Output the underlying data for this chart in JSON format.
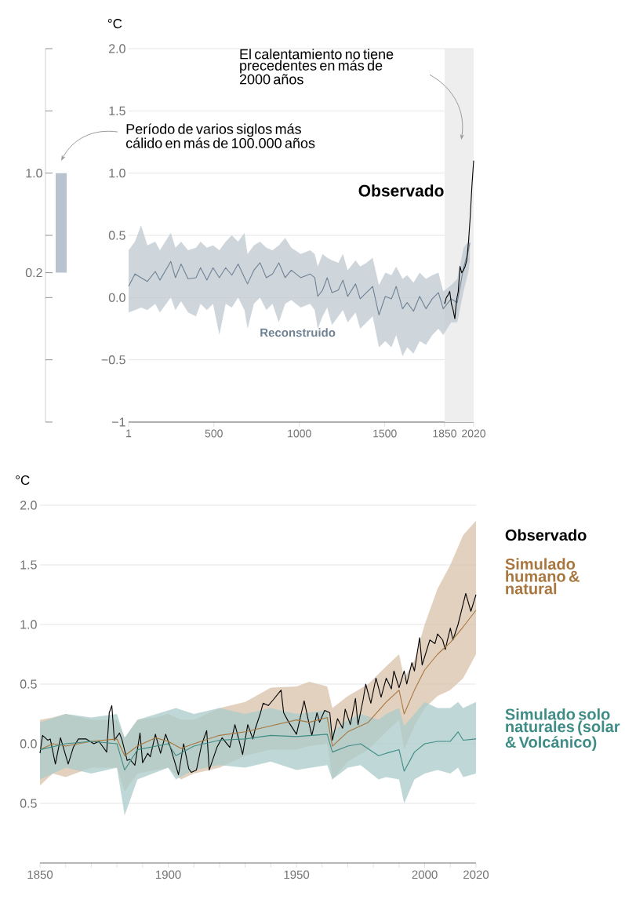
{
  "chart_data": [
    {
      "type": "bar",
      "categories": [
        null
      ],
      "base": [
        0.2
      ],
      "values": [
        0.8
      ],
      "color": "#b8c3cf",
      "ylim": [
        -1,
        2
      ],
      "tick_labels": "y",
      "yticks": [
        {
          "value": -1,
          "label": null
        },
        {
          "value": -0.5,
          "label": null
        },
        {
          "value": 0,
          "label": null
        },
        {
          "value": 0.2,
          "label": "0.2"
        },
        {
          "value": 0.5,
          "label": null
        },
        {
          "value": 1,
          "label": "1.0"
        },
        {
          "value": 1.5,
          "label": null
        },
        {
          "value": 2,
          "label": null
        }
      ],
      "annotations": [
        "Período de varios siglos más cálido en más de 100.000 años"
      ]
    },
    {
      "type": "line",
      "ylabel": "°C",
      "annotations": [
        "El calentamiento no tiene precedentes en más de 2000 años"
      ],
      "xlim": [
        1,
        2020
      ],
      "xticks": [
        1,
        500,
        1000,
        1500,
        1850,
        2020
      ],
      "ylim": [
        -1,
        2
      ],
      "yticks": [
        {
          "value": -1,
          "label": "−1"
        },
        {
          "value": -0.5,
          "label": "−0.5"
        },
        {
          "value": 0,
          "label": "0.0"
        },
        {
          "value": 0.5,
          "label": "0.5"
        },
        {
          "value": 1,
          "label": "1.0"
        },
        {
          "value": 1.5,
          "label": "1.5"
        },
        {
          "value": 2,
          "label": "2.0"
        }
      ],
      "grid": "y",
      "bands": [
        {
          "axis": "x",
          "from": 1850,
          "to": 2020,
          "color": "#eeeeee"
        }
      ],
      "series": [
        {
          "name": "Reconstruido",
          "color": "#6f8294",
          "x": [
            1,
            38,
            74,
            111,
            157,
            184,
            248,
            275,
            308,
            349,
            395,
            422,
            459,
            495,
            532,
            569,
            605,
            642,
            679,
            697,
            734,
            770,
            807,
            843,
            880,
            917,
            953,
            1008,
            1063,
            1090,
            1108,
            1136,
            1163,
            1191,
            1228,
            1255,
            1283,
            1329,
            1356,
            1393,
            1429,
            1466,
            1503,
            1539,
            1567,
            1604,
            1631,
            1668,
            1704,
            1741,
            1778,
            1814,
            1842,
            1888,
            1924,
            1961,
            1988,
            1998
          ],
          "values": [
            0.09,
            0.19,
            0.16,
            0.13,
            0.21,
            0.14,
            0.29,
            0.16,
            0.27,
            0.15,
            0.16,
            0.24,
            0.14,
            0.24,
            0.16,
            0.24,
            0.18,
            0.27,
            0.16,
            0.11,
            0.22,
            0.28,
            0.16,
            0.19,
            0.28,
            0.16,
            0.22,
            0.16,
            0.19,
            0.16,
            0.01,
            0.06,
            0.16,
            0.04,
            0.06,
            0.14,
            0.01,
            0.11,
            -0.01,
            0.04,
            0.09,
            -0.14,
            0.01,
            -0.01,
            0.09,
            -0.09,
            -0.04,
            -0.11,
            0.01,
            -0.09,
            -0.01,
            0.04,
            -0.09,
            -0.01,
            -0.04,
            0.24,
            0.37,
            0.44
          ],
          "lower": [
            -0.12,
            -0.1,
            -0.08,
            -0.1,
            -0.05,
            -0.12,
            0.0,
            -0.1,
            -0.03,
            -0.12,
            -0.15,
            -0.05,
            -0.1,
            -0.05,
            -0.3,
            -0.05,
            -0.08,
            0.0,
            -0.1,
            -0.25,
            -0.05,
            0.0,
            -0.1,
            -0.05,
            -0.2,
            -0.05,
            -0.02,
            -0.08,
            -0.05,
            -0.1,
            -0.25,
            -0.15,
            -0.08,
            -0.22,
            -0.15,
            -0.1,
            -0.2,
            -0.12,
            -0.25,
            -0.2,
            -0.15,
            -0.4,
            -0.35,
            -0.4,
            -0.3,
            -0.47,
            -0.4,
            -0.45,
            -0.35,
            -0.38,
            -0.3,
            -0.25,
            -0.3,
            -0.2,
            -0.2,
            0.05,
            0.2,
            0.3
          ],
          "upper": [
            0.38,
            0.45,
            0.58,
            0.42,
            0.45,
            0.38,
            0.52,
            0.4,
            0.45,
            0.38,
            0.4,
            0.45,
            0.4,
            0.42,
            0.38,
            0.45,
            0.5,
            0.45,
            0.52,
            0.35,
            0.42,
            0.45,
            0.4,
            0.38,
            0.42,
            0.48,
            0.4,
            0.35,
            0.38,
            0.35,
            0.25,
            0.35,
            0.32,
            0.3,
            0.28,
            0.35,
            0.22,
            0.3,
            0.25,
            0.28,
            0.32,
            0.1,
            0.2,
            0.18,
            0.25,
            0.15,
            0.18,
            0.12,
            0.2,
            0.15,
            0.18,
            0.2,
            0.05,
            0.1,
            0.15,
            0.4,
            0.45,
            0.5
          ]
        },
        {
          "name": "Observado",
          "color": "#000000",
          "x": [
            1850,
            1860,
            1870,
            1880,
            1890,
            1900,
            1910,
            1920,
            1930,
            1940,
            1950,
            1960,
            1970,
            1980,
            1990,
            2000,
            2010,
            2020
          ],
          "values": [
            -0.05,
            0.0,
            0.02,
            0.05,
            -0.05,
            -0.1,
            -0.17,
            -0.02,
            0.05,
            0.25,
            0.2,
            0.22,
            0.25,
            0.3,
            0.45,
            0.65,
            0.9,
            1.1
          ]
        }
      ]
    },
    {
      "type": "line",
      "ylabel": "°C",
      "xlim": [
        1850,
        2020
      ],
      "xticks": [
        1850,
        {
          "value": 1860,
          "label": null
        },
        {
          "value": 1870,
          "label": null
        },
        {
          "value": 1880,
          "label": null
        },
        {
          "value": 1890,
          "label": null
        },
        1900,
        {
          "value": 1910,
          "label": null
        },
        {
          "value": 1920,
          "label": null
        },
        {
          "value": 1930,
          "label": null
        },
        {
          "value": 1940,
          "label": null
        },
        1950,
        {
          "value": 1960,
          "label": null
        },
        {
          "value": 1970,
          "label": null
        },
        {
          "value": 1980,
          "label": null
        },
        {
          "value": 1990,
          "label": null
        },
        2000,
        {
          "value": 2010,
          "label": null
        },
        2020
      ],
      "ylim": [
        -1,
        2
      ],
      "yticks": [
        {
          "value": -0.5,
          "label": "0.5"
        },
        {
          "value": 0,
          "label": "0.0"
        },
        {
          "value": 0.5,
          "label": "0.5"
        },
        {
          "value": 1,
          "label": "1.0"
        },
        {
          "value": 1.5,
          "label": "1.5"
        },
        {
          "value": 2,
          "label": "2.0"
        }
      ],
      "grid": "y",
      "series": [
        {
          "name": "Observado",
          "color": "#000000",
          "x": [
            1850,
            1851,
            1853,
            1854,
            1856,
            1858,
            1861,
            1863,
            1865,
            1868,
            1871,
            1873,
            1876,
            1877,
            1878,
            1879,
            1881,
            1882,
            1884,
            1885,
            1887,
            1889,
            1890,
            1892,
            1893,
            1895,
            1897,
            1899,
            1901,
            1904,
            1906,
            1908,
            1909,
            1911,
            1913,
            1915,
            1916,
            1919,
            1921,
            1924,
            1926,
            1927,
            1929,
            1931,
            1933,
            1934,
            1936,
            1937,
            1939,
            1941,
            1944,
            1945,
            1947,
            1950,
            1953,
            1955,
            1956,
            1958,
            1959,
            1961,
            1963,
            1964,
            1966,
            1968,
            1969,
            1971,
            1973,
            1974,
            1976,
            1977,
            1979,
            1981,
            1983,
            1985,
            1987,
            1988,
            1990,
            1992,
            1993,
            1995,
            1996,
            1998,
            1999,
            2002,
            2004,
            2005,
            2007,
            2008,
            2010,
            2011,
            2013,
            2016,
            2018,
            2020
          ],
          "values": [
            -0.08,
            0.07,
            0.03,
            0.04,
            -0.17,
            0.05,
            -0.17,
            -0.03,
            0.04,
            0.04,
            0.0,
            0.02,
            -0.07,
            0.26,
            0.32,
            0.03,
            0.09,
            0.03,
            -0.14,
            -0.13,
            -0.18,
            0.09,
            -0.16,
            -0.08,
            -0.11,
            0.08,
            -0.08,
            0.08,
            -0.04,
            -0.26,
            0.0,
            -0.21,
            -0.24,
            -0.22,
            -0.01,
            0.11,
            -0.22,
            -0.03,
            0.05,
            -0.03,
            0.16,
            0.08,
            -0.09,
            0.16,
            0.04,
            0.13,
            0.26,
            0.34,
            0.32,
            0.37,
            0.45,
            0.26,
            0.18,
            0.08,
            0.36,
            0.16,
            0.07,
            0.26,
            0.18,
            0.28,
            0.26,
            0.03,
            0.21,
            0.13,
            0.29,
            0.16,
            0.38,
            0.16,
            0.37,
            0.5,
            0.34,
            0.55,
            0.39,
            0.55,
            0.46,
            0.61,
            0.47,
            0.61,
            0.5,
            0.68,
            0.61,
            0.89,
            0.66,
            0.87,
            0.84,
            0.92,
            0.87,
            0.79,
            0.97,
            0.87,
            1.0,
            1.26,
            1.11,
            1.25
          ]
        },
        {
          "name": "Simulado humano & natural",
          "color": "#a8773f",
          "x": [
            1850,
            1855,
            1860,
            1870,
            1880,
            1883,
            1888,
            1895,
            1900,
            1905,
            1910,
            1920,
            1930,
            1940,
            1950,
            1955,
            1962,
            1964,
            1970,
            1978,
            1985,
            1990,
            1992,
            1996,
            2000,
            2005,
            2010,
            2015,
            2020
          ],
          "values": [
            -0.05,
            0.0,
            -0.02,
            0.02,
            0.04,
            -0.1,
            -0.02,
            0.05,
            0.02,
            -0.04,
            0.0,
            0.07,
            0.1,
            0.15,
            0.2,
            0.18,
            0.22,
            -0.02,
            0.1,
            0.18,
            0.35,
            0.45,
            0.25,
            0.45,
            0.62,
            0.75,
            0.85,
            0.98,
            1.12
          ],
          "upper": [
            0.2,
            0.22,
            0.25,
            0.2,
            0.2,
            0.05,
            0.2,
            0.22,
            0.25,
            0.2,
            0.2,
            0.3,
            0.35,
            0.47,
            0.48,
            0.52,
            0.48,
            0.3,
            0.4,
            0.5,
            0.65,
            0.75,
            0.55,
            0.7,
            1.0,
            1.3,
            1.5,
            1.75,
            1.87
          ],
          "lower": [
            -0.35,
            -0.25,
            -0.28,
            -0.2,
            -0.2,
            -0.4,
            -0.25,
            -0.22,
            -0.2,
            -0.3,
            -0.25,
            -0.2,
            -0.1,
            -0.05,
            -0.05,
            -0.02,
            0.0,
            -0.3,
            -0.15,
            -0.05,
            0.1,
            0.2,
            -0.05,
            0.15,
            0.3,
            0.4,
            0.45,
            0.55,
            0.75
          ]
        },
        {
          "name": "Simulado solo naturales (solar & Volcánico)",
          "color": "#3f8c86",
          "x": [
            1850,
            1860,
            1870,
            1880,
            1883,
            1888,
            1900,
            1903,
            1910,
            1920,
            1930,
            1940,
            1950,
            1962,
            1964,
            1970,
            1975,
            1982,
            1985,
            1990,
            1992,
            1996,
            2000,
            2005,
            2010,
            2013,
            2015,
            2020
          ],
          "values": [
            -0.05,
            0.0,
            0.02,
            0.0,
            -0.22,
            -0.05,
            0.0,
            -0.1,
            -0.02,
            0.03,
            0.04,
            0.07,
            0.06,
            0.08,
            -0.07,
            -0.02,
            0.0,
            -0.1,
            -0.08,
            -0.05,
            -0.23,
            -0.07,
            0.0,
            0.02,
            0.02,
            0.1,
            0.03,
            0.04
          ],
          "upper": [
            0.18,
            0.25,
            0.22,
            0.25,
            0.05,
            0.2,
            0.28,
            0.3,
            0.25,
            0.3,
            0.25,
            0.3,
            0.25,
            0.28,
            0.1,
            0.2,
            0.25,
            0.2,
            0.25,
            0.3,
            0.15,
            0.25,
            0.35,
            0.3,
            0.3,
            0.35,
            0.3,
            0.35
          ],
          "lower": [
            -0.3,
            -0.2,
            -0.25,
            -0.2,
            -0.6,
            -0.3,
            -0.2,
            -0.3,
            -0.22,
            -0.18,
            -0.2,
            -0.15,
            -0.22,
            -0.18,
            -0.3,
            -0.2,
            -0.18,
            -0.3,
            -0.28,
            -0.3,
            -0.5,
            -0.3,
            -0.25,
            -0.22,
            -0.25,
            -0.2,
            -0.28,
            -0.25
          ]
        }
      ]
    }
  ]
}
